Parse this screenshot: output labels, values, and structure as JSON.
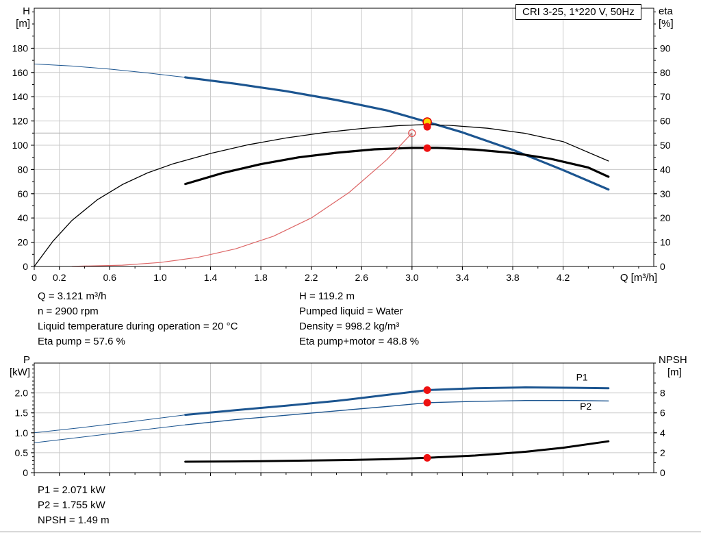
{
  "header": {
    "title": "CRI 3-25, 1*220 V, 50Hz"
  },
  "annotations": {
    "top_left": [
      "Q = 3.121 m³/h",
      "n = 2900 rpm",
      "Liquid temperature during operation = 20 °C",
      "Eta pump = 57.6 %"
    ],
    "top_right": [
      "H = 119.2 m",
      "Pumped liquid = Water",
      "Density = 998.2 kg/m³",
      "Eta pump+motor = 48.8 %"
    ],
    "bottom": [
      "P1 = 2.071 kW",
      "P2 = 1.755 kW",
      "NPSH = 1.49 m"
    ]
  },
  "colors": {
    "curve_blue": "#1c5590",
    "curve_black": "#000000",
    "curve_red": "#dd6666",
    "marker_red": "#ee1111",
    "marker_yellow": "#ffd800",
    "grid": "#c9c9c9"
  },
  "chart_data": [
    {
      "type": "line",
      "name": "qh-eta-chart",
      "title": "CRI 3-25, 1*220 V, 50Hz",
      "xlabel": "Q [m³/h]",
      "ylabel_left": [
        "H",
        "[m]"
      ],
      "ylabel_right": [
        "eta",
        "[%]"
      ],
      "xlim": [
        0,
        4.92
      ],
      "ylim_left": [
        0,
        213
      ],
      "ylim_right": [
        0,
        106.5
      ],
      "grid": true,
      "xticks": [
        0,
        0.2,
        0.6,
        1.0,
        1.4,
        1.8,
        2.2,
        2.6,
        3.0,
        3.4,
        3.8,
        4.2
      ],
      "xtick_labels": [
        "0",
        "0.2",
        "0.6",
        "1.0",
        "1.4",
        "1.8",
        "2.2",
        "2.6",
        "3.0",
        "3.4",
        "3.8",
        "4.2"
      ],
      "xtick_minor_step": 0.2,
      "yticks_left": [
        0,
        20,
        40,
        60,
        80,
        100,
        120,
        140,
        160,
        180
      ],
      "ytick_left_labels": [
        "0",
        "20",
        "40",
        "60",
        "80",
        "100",
        "120",
        "140",
        "160",
        "180"
      ],
      "ytick_left_minor_step": 10,
      "yticks_right": [
        0,
        10,
        20,
        30,
        40,
        50,
        60,
        70,
        80,
        90
      ],
      "ytick_right_labels": [
        "0",
        "10",
        "20",
        "30",
        "40",
        "50",
        "60",
        "70",
        "80",
        "90"
      ],
      "ytick_right_minor_step": 5,
      "series": [
        {
          "name": "qh-curve-extrapolated",
          "axis": "left",
          "color": "#1c5590",
          "width": 1,
          "points": [
            [
              0,
              167
            ],
            [
              0.3,
              165.3
            ],
            [
              0.6,
              162.8
            ],
            [
              0.9,
              159.6
            ],
            [
              1.2,
              156
            ]
          ]
        },
        {
          "name": "qh-curve",
          "axis": "left",
          "color": "#1c5590",
          "width": 3.2,
          "points": [
            [
              1.2,
              156
            ],
            [
              1.6,
              150.7
            ],
            [
              2.0,
              144.6
            ],
            [
              2.4,
              137.3
            ],
            [
              2.8,
              128.7
            ],
            [
              3.121,
              119.2
            ],
            [
              3.4,
              110.6
            ],
            [
              3.8,
              96.2
            ],
            [
              4.2,
              79.5
            ],
            [
              4.56,
              63.5
            ]
          ]
        },
        {
          "name": "eta-pump-curve",
          "axis": "right",
          "color": "#000000",
          "width": 1.3,
          "points": [
            [
              0,
              0
            ],
            [
              0.15,
              10.5
            ],
            [
              0.3,
              19
            ],
            [
              0.5,
              27.5
            ],
            [
              0.7,
              33.8
            ],
            [
              0.9,
              38.6
            ],
            [
              1.1,
              42.3
            ],
            [
              1.4,
              46.6
            ],
            [
              1.7,
              50.2
            ],
            [
              2.0,
              53
            ],
            [
              2.3,
              55.2
            ],
            [
              2.6,
              56.9
            ],
            [
              2.9,
              58.1
            ],
            [
              3.1,
              58.5
            ],
            [
              3.3,
              58.2
            ],
            [
              3.6,
              57
            ],
            [
              3.9,
              54.9
            ],
            [
              4.2,
              51.5
            ],
            [
              4.56,
              43.5
            ]
          ]
        },
        {
          "name": "eta-pump-motor-curve",
          "axis": "right",
          "color": "#000000",
          "width": 3.2,
          "points": [
            [
              1.2,
              34
            ],
            [
              1.5,
              38.6
            ],
            [
              1.8,
              42.2
            ],
            [
              2.1,
              45
            ],
            [
              2.4,
              46.9
            ],
            [
              2.7,
              48.3
            ],
            [
              3.0,
              48.9
            ],
            [
              3.2,
              48.9
            ],
            [
              3.5,
              48.2
            ],
            [
              3.8,
              46.8
            ],
            [
              4.1,
              44.4
            ],
            [
              4.4,
              40.8
            ],
            [
              4.56,
              37
            ]
          ]
        },
        {
          "name": "system-curve",
          "axis": "left",
          "color": "#dd6666",
          "width": 1.2,
          "points": [
            [
              0.3,
              0.1
            ],
            [
              0.7,
              1.1
            ],
            [
              1.0,
              3.3
            ],
            [
              1.3,
              7.5
            ],
            [
              1.6,
              14.6
            ],
            [
              1.9,
              25
            ],
            [
              2.2,
              40
            ],
            [
              2.5,
              61
            ],
            [
              2.8,
              88
            ],
            [
              3.0,
              110
            ]
          ]
        }
      ],
      "guides": [
        {
          "type": "v",
          "x": 3.0,
          "y": 110,
          "axis": "left",
          "color": "#555555"
        },
        {
          "type": "h",
          "x": 3.0,
          "y": 110,
          "axis": "left",
          "color": "#b0b0b0"
        }
      ],
      "markers": [
        {
          "name": "requested-duty-point",
          "x": 3.0,
          "y": 110,
          "axis": "left",
          "r": 5,
          "fill": "none",
          "stroke": "#e05555",
          "sw": 1.4
        },
        {
          "name": "duty-point",
          "x": 3.121,
          "y": 119.2,
          "axis": "left",
          "r": 6,
          "fill": "#ffd800",
          "stroke": "#e00000",
          "sw": 1.6
        },
        {
          "name": "eta-pump-point",
          "x": 3.121,
          "y": 57.6,
          "axis": "right",
          "r": 5,
          "fill": "#ee1111",
          "stroke": "#ee1111",
          "sw": 1
        },
        {
          "name": "eta-pump-motor-point",
          "x": 3.121,
          "y": 48.8,
          "axis": "right",
          "r": 5,
          "fill": "#ee1111",
          "stroke": "#ee1111",
          "sw": 1
        }
      ],
      "labels": []
    },
    {
      "type": "line",
      "name": "power-npsh-chart",
      "xlabel": "",
      "ylabel_left": [
        "P",
        "[kW]"
      ],
      "ylabel_right": [
        "NPSH",
        "[m]"
      ],
      "xlim": [
        0,
        4.92
      ],
      "ylim_left": [
        0,
        2.75
      ],
      "ylim_right": [
        0,
        11
      ],
      "grid": true,
      "xticks": [
        0,
        0.2,
        0.6,
        1.0,
        1.4,
        1.8,
        2.2,
        2.6,
        3.0,
        3.4,
        3.8,
        4.2
      ],
      "xtick_labels": null,
      "xtick_minor_step": 0.2,
      "yticks_left": [
        0,
        0.5,
        1.0,
        1.5,
        2.0
      ],
      "ytick_left_labels": [
        "0",
        "0.5",
        "1.0",
        "1.5",
        "2.0"
      ],
      "ytick_left_minor_step": 0.1,
      "yticks_right": [
        0,
        2,
        4,
        6,
        8
      ],
      "ytick_right_labels": [
        "0",
        "2",
        "4",
        "6",
        "8"
      ],
      "ytick_right_minor_step": 1,
      "series": [
        {
          "name": "p1-curve-extrapolated",
          "axis": "left",
          "color": "#1c5590",
          "width": 1,
          "points": [
            [
              0,
              1.0
            ],
            [
              0.4,
              1.14
            ],
            [
              0.8,
              1.29
            ],
            [
              1.2,
              1.45
            ]
          ]
        },
        {
          "name": "p1-curve",
          "axis": "left",
          "color": "#1c5590",
          "width": 3,
          "points": [
            [
              1.2,
              1.45
            ],
            [
              1.6,
              1.57
            ],
            [
              2.0,
              1.68
            ],
            [
              2.4,
              1.8
            ],
            [
              2.8,
              1.95
            ],
            [
              3.121,
              2.071
            ],
            [
              3.5,
              2.12
            ],
            [
              3.9,
              2.14
            ],
            [
              4.3,
              2.13
            ],
            [
              4.56,
              2.12
            ]
          ]
        },
        {
          "name": "p2-curve-extrapolated",
          "axis": "left",
          "color": "#1c5590",
          "width": 1,
          "points": [
            [
              0,
              0.75
            ],
            [
              0.4,
              0.9
            ],
            [
              0.8,
              1.05
            ],
            [
              1.2,
              1.2
            ]
          ]
        },
        {
          "name": "p2-curve",
          "axis": "left",
          "color": "#1c5590",
          "width": 1.4,
          "points": [
            [
              1.2,
              1.2
            ],
            [
              1.6,
              1.33
            ],
            [
              2.0,
              1.44
            ],
            [
              2.4,
              1.55
            ],
            [
              2.8,
              1.66
            ],
            [
              3.121,
              1.755
            ],
            [
              3.5,
              1.79
            ],
            [
              3.9,
              1.81
            ],
            [
              4.3,
              1.81
            ],
            [
              4.56,
              1.8
            ]
          ]
        },
        {
          "name": "npsh-curve",
          "axis": "right",
          "color": "#000000",
          "width": 3,
          "points": [
            [
              1.2,
              1.1
            ],
            [
              1.6,
              1.13
            ],
            [
              2.0,
              1.18
            ],
            [
              2.4,
              1.25
            ],
            [
              2.8,
              1.35
            ],
            [
              3.121,
              1.49
            ],
            [
              3.5,
              1.72
            ],
            [
              3.9,
              2.1
            ],
            [
              4.2,
              2.5
            ],
            [
              4.56,
              3.15
            ]
          ]
        }
      ],
      "guides": [],
      "markers": [
        {
          "name": "p1-point",
          "x": 3.121,
          "y": 2.071,
          "axis": "left",
          "r": 5,
          "fill": "#ee1111",
          "stroke": "#ee1111",
          "sw": 1
        },
        {
          "name": "p2-point",
          "x": 3.121,
          "y": 1.755,
          "axis": "left",
          "r": 5,
          "fill": "#ee1111",
          "stroke": "#ee1111",
          "sw": 1
        },
        {
          "name": "npsh-point",
          "x": 3.121,
          "y": 1.49,
          "axis": "right",
          "r": 5,
          "fill": "#ee1111",
          "stroke": "#ee1111",
          "sw": 1
        }
      ],
      "labels": [
        {
          "text": "P1",
          "x": 4.35,
          "y": 2.31,
          "axis": "left",
          "color": "#1c5590"
        },
        {
          "text": "P2",
          "x": 4.38,
          "y": 1.58,
          "axis": "left",
          "color": "#1c5590"
        }
      ]
    }
  ]
}
